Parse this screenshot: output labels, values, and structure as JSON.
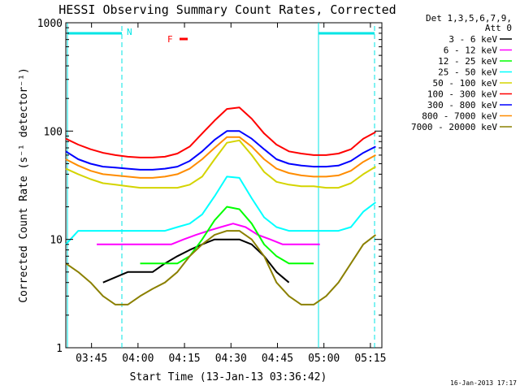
{
  "chart_data": {
    "type": "line",
    "title": "HESSI Observing Summary Count Rates, Corrected",
    "xlabel": "Start Time (13-Jan-13 03:36:42)",
    "ylabel": "Corrected Count Rate (s⁻¹ detector⁻¹)",
    "yscale": "log",
    "ylim": [
      1,
      1000
    ],
    "xlim_minutes": [
      0,
      102
    ],
    "x_ticks": [
      {
        "label": "03:45",
        "minute": 8.3
      },
      {
        "label": "04:00",
        "minute": 23.3
      },
      {
        "label": "04:15",
        "minute": 38.3
      },
      {
        "label": "04:30",
        "minute": 53.3
      },
      {
        "label": "04:45",
        "minute": 68.3
      },
      {
        "label": "05:00",
        "minute": 83.3
      },
      {
        "label": "05:15",
        "minute": 98.3
      }
    ],
    "y_ticks": [
      {
        "label": "1",
        "value": 1
      },
      {
        "label": "10",
        "value": 10
      },
      {
        "label": "100",
        "value": 100
      },
      {
        "label": "1000",
        "value": 1000
      }
    ],
    "legend_header": [
      "Det 1,3,5,6,7,9,",
      "Att 0"
    ],
    "legend_position": "right",
    "grid": false,
    "series": [
      {
        "name": "3 - 6 keV",
        "color": "#000000",
        "x": [
          12,
          20,
          28,
          32,
          36,
          40,
          44,
          48,
          52,
          56,
          60,
          64,
          68,
          72
        ],
        "y": [
          4,
          5,
          5,
          6,
          7,
          8,
          9,
          10,
          10,
          10,
          9,
          7,
          5,
          4
        ]
      },
      {
        "name": "6 - 12 keV",
        "color": "#ff00ff",
        "x": [
          10,
          14,
          18,
          22,
          26,
          30,
          34,
          38,
          42,
          46,
          50,
          54,
          58,
          62,
          66,
          70,
          74,
          78,
          82
        ],
        "y": [
          9,
          9,
          9,
          9,
          9,
          9,
          9,
          10,
          11,
          12,
          13,
          14,
          13,
          11,
          10,
          9,
          9,
          9,
          9
        ]
      },
      {
        "name": "12 - 25 keV",
        "color": "#00ff00",
        "x": [
          24,
          28,
          32,
          36,
          40,
          44,
          48,
          52,
          56,
          60,
          64,
          68,
          72,
          76,
          80
        ],
        "y": [
          6,
          6,
          6,
          6,
          7,
          10,
          15,
          20,
          19,
          14,
          9,
          7,
          6,
          6,
          6
        ]
      },
      {
        "name": "25 - 50 keV",
        "color": "#00ffff",
        "x": [
          0,
          4,
          8,
          12,
          16,
          20,
          24,
          28,
          32,
          36,
          40,
          44,
          48,
          52,
          56,
          60,
          64,
          68,
          72,
          76,
          80,
          84,
          88,
          92,
          96,
          100
        ],
        "y": [
          9,
          12,
          12,
          12,
          12,
          12,
          12,
          12,
          12,
          13,
          14,
          17,
          25,
          38,
          37,
          24,
          16,
          13,
          12,
          12,
          12,
          12,
          12,
          13,
          18,
          22
        ]
      },
      {
        "name": "50 - 100 keV",
        "color": "#d4d400",
        "x": [
          0,
          4,
          8,
          12,
          16,
          20,
          24,
          28,
          32,
          36,
          40,
          44,
          48,
          52,
          56,
          60,
          64,
          68,
          72,
          76,
          80,
          84,
          88,
          92,
          96,
          100
        ],
        "y": [
          45,
          40,
          36,
          33,
          32,
          31,
          30,
          30,
          30,
          30,
          32,
          38,
          55,
          78,
          82,
          60,
          42,
          34,
          32,
          31,
          31,
          30,
          30,
          33,
          40,
          47
        ]
      },
      {
        "name": "100 - 300 keV",
        "color": "#ff0000",
        "x": [
          0,
          4,
          8,
          12,
          16,
          20,
          24,
          28,
          32,
          36,
          40,
          44,
          48,
          52,
          56,
          60,
          64,
          68,
          72,
          76,
          80,
          84,
          88,
          92,
          96,
          100
        ],
        "y": [
          85,
          75,
          68,
          63,
          60,
          58,
          57,
          57,
          58,
          62,
          72,
          95,
          125,
          160,
          165,
          130,
          95,
          75,
          65,
          62,
          60,
          60,
          62,
          68,
          85,
          98
        ]
      },
      {
        "name": "300 - 800 keV",
        "color": "#0000ff",
        "x": [
          0,
          4,
          8,
          12,
          16,
          20,
          24,
          28,
          32,
          36,
          40,
          44,
          48,
          52,
          56,
          60,
          64,
          68,
          72,
          76,
          80,
          84,
          88,
          92,
          96,
          100
        ],
        "y": [
          65,
          55,
          50,
          47,
          46,
          45,
          44,
          44,
          45,
          47,
          53,
          65,
          83,
          100,
          100,
          85,
          68,
          55,
          50,
          48,
          47,
          47,
          48,
          53,
          63,
          72
        ]
      },
      {
        "name": "800 - 7000 keV",
        "color": "#ff8c00",
        "x": [
          0,
          4,
          8,
          12,
          16,
          20,
          24,
          28,
          32,
          36,
          40,
          44,
          48,
          52,
          56,
          60,
          64,
          68,
          72,
          76,
          80,
          84,
          88,
          92,
          96,
          100
        ],
        "y": [
          55,
          48,
          43,
          40,
          39,
          38,
          37,
          37,
          38,
          40,
          45,
          55,
          70,
          88,
          88,
          72,
          55,
          45,
          41,
          39,
          38,
          38,
          39,
          43,
          52,
          60
        ]
      },
      {
        "name": "7000 - 20000 keV",
        "color": "#8b8000",
        "x": [
          0,
          4,
          8,
          12,
          16,
          20,
          24,
          28,
          32,
          36,
          40,
          44,
          48,
          52,
          56,
          60,
          64,
          68,
          72,
          76,
          80,
          84,
          88,
          92,
          96,
          100
        ],
        "y": [
          6,
          5,
          4,
          3,
          2.5,
          2.5,
          3,
          3.5,
          4,
          5,
          7,
          9,
          11,
          12,
          12,
          10,
          7,
          4,
          3,
          2.5,
          2.5,
          3,
          4,
          6,
          9,
          11
        ]
      }
    ],
    "annotations": {
      "night_label": "N",
      "flare_label": "F",
      "footer_date": "16-Jan-2013 17:17"
    },
    "colors": {
      "axes": "#000000",
      "night_marker": "#00e5e5",
      "flare_marker": "#ff0000"
    }
  }
}
